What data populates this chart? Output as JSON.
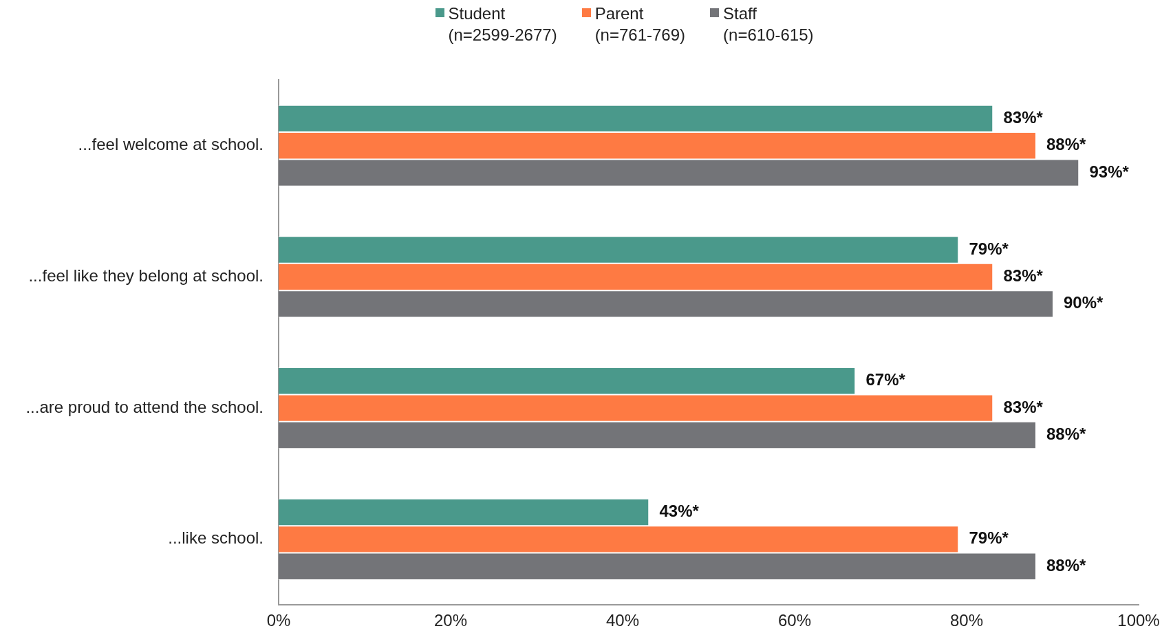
{
  "chart_data": {
    "type": "bar",
    "orientation": "horizontal",
    "categories": [
      "...feel welcome at school.",
      "...feel like they belong at school.",
      "...are proud to attend the school.",
      "...like school."
    ],
    "series": [
      {
        "name": "Student (n=2599-2677)",
        "color": "#4a998b",
        "values": [
          83,
          79,
          67,
          43
        ],
        "value_labels": [
          "83%*",
          "79%*",
          "67%*",
          "43%*"
        ]
      },
      {
        "name": "Parent (n=761-769)",
        "color": "#fe7a43",
        "values": [
          88,
          83,
          83,
          79
        ],
        "value_labels": [
          "88%*",
          "83%*",
          "83%*",
          "79%*"
        ]
      },
      {
        "name": "Staff (n=610-615)",
        "color": "#737478",
        "values": [
          93,
          90,
          88,
          88
        ],
        "value_labels": [
          "93%*",
          "90%*",
          "88%*",
          "88%*"
        ]
      }
    ],
    "xlim": [
      0,
      100
    ],
    "xticks": [
      {
        "value": 0,
        "label": "0%"
      },
      {
        "value": 20,
        "label": "20%"
      },
      {
        "value": 40,
        "label": "40%"
      },
      {
        "value": 60,
        "label": "60%"
      },
      {
        "value": 80,
        "label": "80%"
      },
      {
        "value": 100,
        "label": "100%"
      }
    ],
    "grid": false,
    "legend": "top"
  }
}
